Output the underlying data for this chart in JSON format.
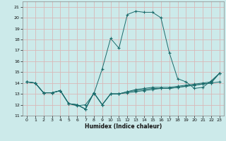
{
  "xlabel": "Humidex (Indice chaleur)",
  "xlim": [
    -0.5,
    23.5
  ],
  "ylim": [
    11,
    21.5
  ],
  "yticks": [
    11,
    12,
    13,
    14,
    15,
    16,
    17,
    18,
    19,
    20,
    21
  ],
  "xticks": [
    0,
    1,
    2,
    3,
    4,
    5,
    6,
    7,
    8,
    9,
    10,
    11,
    12,
    13,
    14,
    15,
    16,
    17,
    18,
    19,
    20,
    21,
    22,
    23
  ],
  "background_color": "#cceaea",
  "grid_color": "#d8b8b8",
  "line_color": "#1a6b6b",
  "series": [
    [
      14.1,
      14.0,
      13.1,
      13.1,
      13.3,
      12.1,
      11.9,
      12.0,
      13.0,
      15.3,
      18.1,
      17.2,
      20.3,
      20.6,
      20.5,
      20.5,
      20.0,
      16.8,
      14.4,
      14.1,
      13.5,
      13.6,
      14.2,
      14.9
    ],
    [
      14.1,
      14.0,
      13.1,
      13.1,
      13.3,
      12.1,
      12.0,
      11.6,
      13.1,
      12.0,
      13.0,
      13.0,
      13.2,
      13.3,
      13.4,
      13.5,
      13.5,
      13.5,
      13.6,
      13.7,
      13.8,
      13.9,
      14.0,
      14.1
    ],
    [
      14.1,
      14.0,
      13.1,
      13.1,
      13.3,
      12.1,
      12.0,
      11.6,
      13.1,
      12.0,
      13.0,
      13.0,
      13.1,
      13.2,
      13.3,
      13.4,
      13.5,
      13.5,
      13.6,
      13.7,
      13.8,
      13.9,
      14.0,
      14.9
    ],
    [
      14.1,
      14.0,
      13.1,
      13.1,
      13.3,
      12.1,
      12.0,
      11.6,
      13.1,
      12.0,
      13.0,
      13.0,
      13.2,
      13.4,
      13.5,
      13.6,
      13.6,
      13.6,
      13.7,
      13.8,
      13.9,
      14.0,
      14.1,
      14.9
    ]
  ]
}
